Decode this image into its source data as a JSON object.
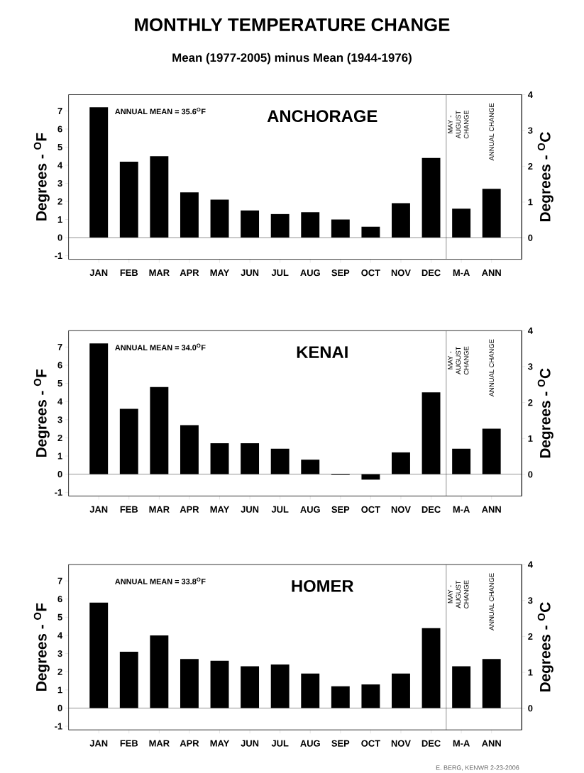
{
  "chart_data": [
    {
      "type": "bar",
      "title": "MONTHLY TEMPERATURE CHANGE",
      "subtitle": "Mean (1977-2005) minus Mean (1944-1976)",
      "ylabel": "Degrees - $^{O}$F",
      "y2label": "Degrees - $^{O}$C",
      "categories": [
        "JAN",
        "FEB",
        "MAR",
        "APR",
        "MAY",
        "JUN",
        "JUL",
        "AUG",
        "SEP",
        "OCT",
        "NOV",
        "DEC",
        "M-A",
        "ANN"
      ],
      "values": [
        7.2,
        4.2,
        4.5,
        2.5,
        2.1,
        1.5,
        1.3,
        1.4,
        1.0,
        0.6,
        1.9,
        4.4,
        1.6,
        2.7
      ],
      "color": "#000000",
      "ylim": [
        -1.2,
        7.9
      ],
      "yticks": [
        -1,
        0,
        1,
        2,
        3,
        4,
        5,
        6,
        7
      ],
      "y2lim": [
        -0.6,
        4
      ],
      "y2ticks": [
        0,
        1,
        2,
        3,
        4
      ],
      "ref_lines": [
        {
          "axis": "y",
          "value": 0
        }
      ],
      "annotations": [
        "ANNUAL MEAN = 35.6$^{O}$F",
        "ANCHORAGE",
        "MAY - AUGUST CHANGE",
        "ANNUAL CHANGE"
      ]
    },
    {
      "type": "bar",
      "ylabel": "Degrees - $^{O}$F",
      "y2label": "Degrees - $^{O}$C",
      "categories": [
        "JAN",
        "FEB",
        "MAR",
        "APR",
        "MAY",
        "JUN",
        "JUL",
        "AUG",
        "SEP",
        "OCT",
        "NOV",
        "DEC",
        "M-A",
        "ANN"
      ],
      "values": [
        7.2,
        3.6,
        4.8,
        2.7,
        1.7,
        1.7,
        1.4,
        0.8,
        -0.04,
        -0.3,
        1.2,
        4.5,
        1.4,
        2.5
      ],
      "color": "#000000",
      "ylim": [
        -1.2,
        7.9
      ],
      "yticks": [
        -1,
        0,
        1,
        2,
        3,
        4,
        5,
        6,
        7
      ],
      "y2lim": [
        -0.6,
        4
      ],
      "y2ticks": [
        0,
        1,
        2,
        3,
        4
      ],
      "ref_lines": [
        {
          "axis": "y",
          "value": 0
        }
      ],
      "annotations": [
        "ANNUAL MEAN = 34.0$^{O}$F",
        "KENAI",
        "MAY - AUGUST CHANGE",
        "ANNUAL CHANGE"
      ]
    },
    {
      "type": "bar",
      "ylabel": "Degrees - $^{O}$F",
      "y2label": "Degrees - $^{O}$C",
      "categories": [
        "JAN",
        "FEB",
        "MAR",
        "APR",
        "MAY",
        "JUN",
        "JUL",
        "AUG",
        "SEP",
        "OCT",
        "NOV",
        "DEC",
        "M-A",
        "ANN"
      ],
      "values": [
        5.8,
        3.1,
        4.0,
        2.7,
        2.6,
        2.3,
        2.4,
        1.9,
        1.2,
        1.3,
        1.9,
        4.4,
        2.3,
        2.7
      ],
      "color": "#000000",
      "ylim": [
        -1.2,
        7.9
      ],
      "yticks": [
        -1,
        0,
        1,
        2,
        3,
        4,
        5,
        6,
        7
      ],
      "y2lim": [
        -0.6,
        4
      ],
      "y2ticks": [
        0,
        1,
        2,
        3,
        4
      ],
      "ref_lines": [
        {
          "axis": "y",
          "value": 0
        }
      ],
      "annotations": [
        "ANNUAL MEAN = 33.8$^{O}$F",
        "HOMER",
        "MAY - AUGUST CHANGE",
        "ANNUAL CHANGE",
        "E. BERG, KENWR 2-23-2006"
      ]
    }
  ]
}
